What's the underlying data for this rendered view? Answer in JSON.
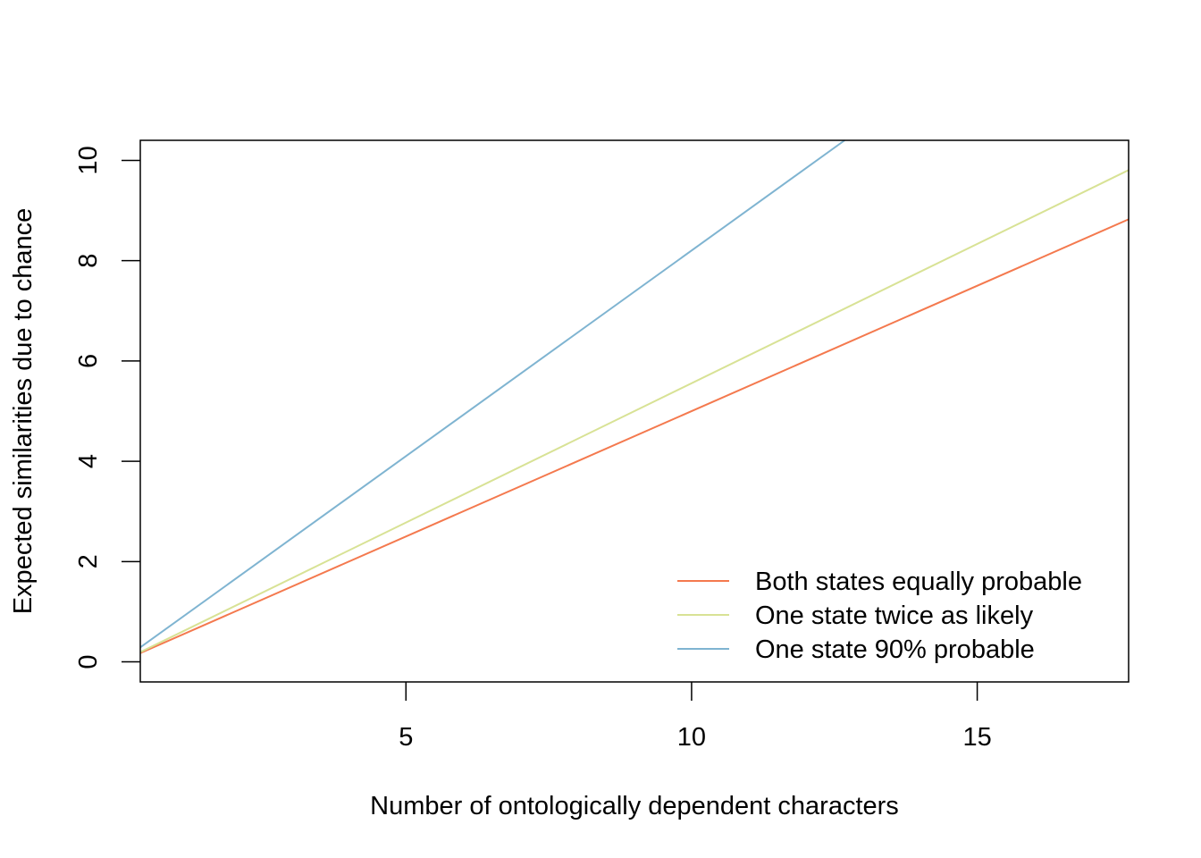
{
  "chart_data": {
    "type": "line",
    "title": "",
    "xlabel": "Number of ontologically dependent characters",
    "ylabel": "Expected similarities due to chance",
    "xlim": [
      0.35,
      17.65
    ],
    "ylim": [
      -0.4,
      10.4
    ],
    "x_ticks": [
      5,
      10,
      15
    ],
    "y_ticks": [
      0,
      2,
      4,
      6,
      8,
      10
    ],
    "grid": false,
    "legend_position": "bottom-right",
    "series": [
      {
        "name": "Both states equally probable",
        "color": "#F4794E",
        "x": [
          0.35,
          17.65
        ],
        "y": [
          0.175,
          8.825
        ]
      },
      {
        "name": "One state twice as likely",
        "color": "#D8E295",
        "x": [
          0.35,
          17.65
        ],
        "y": [
          0.194,
          9.806
        ]
      },
      {
        "name": "One state 90% probable",
        "color": "#7FB4D1",
        "x": [
          0.35,
          12.68
        ],
        "y": [
          0.289,
          10.4
        ]
      }
    ]
  }
}
